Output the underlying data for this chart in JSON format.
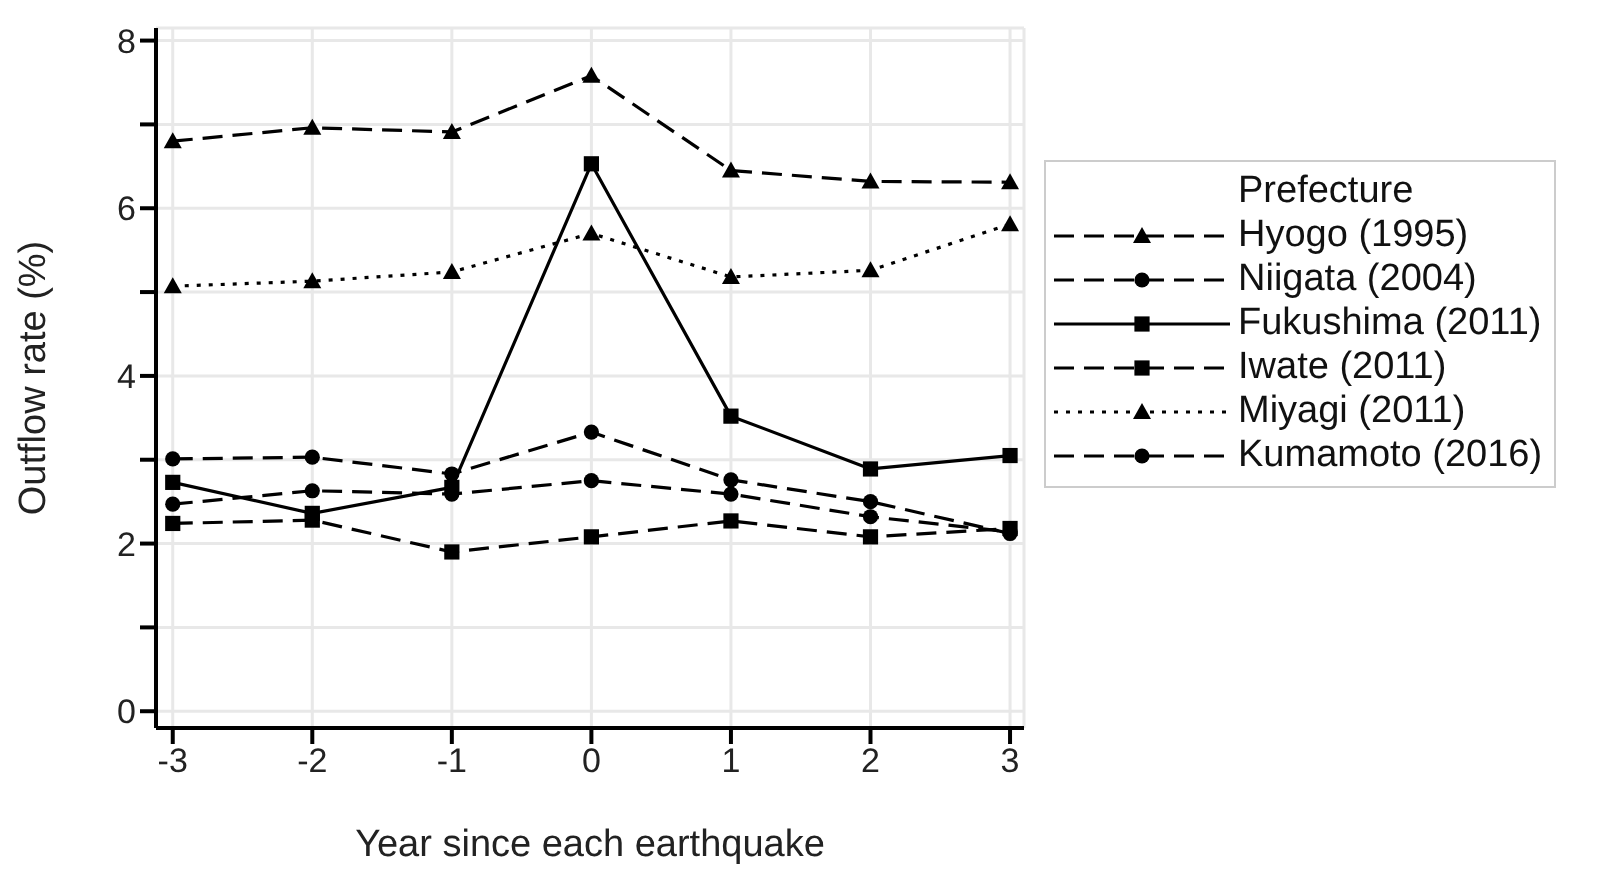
{
  "chart_data": {
    "type": "line",
    "xlabel": "Year since each earthquake",
    "ylabel": "Outflow rate (%)",
    "legend_title": "Prefecture",
    "x": [
      -3,
      -2,
      -1,
      0,
      1,
      2,
      3
    ],
    "xlim": [
      -3.12,
      3.1
    ],
    "xticks": [
      -3,
      -2,
      -1,
      0,
      1,
      2,
      3
    ],
    "ylim": [
      -0.2,
      8.15
    ],
    "yticks": [
      0,
      {
        "value": 1,
        "label": null
      },
      2,
      {
        "value": 3,
        "label": null
      },
      4,
      {
        "value": 5,
        "label": null
      },
      6,
      {
        "value": 7,
        "label": null
      },
      8
    ],
    "grid": true,
    "legend": "right",
    "series": [
      {
        "name": "Hyogo (1995)",
        "color": "#000000",
        "marker": "triangle",
        "line_style": "dashed",
        "values": [
          6.8,
          6.96,
          6.91,
          7.58,
          6.45,
          6.32,
          6.31
        ]
      },
      {
        "name": "Niigata (2004)",
        "color": "#000000",
        "marker": "circle",
        "line_style": "dashed",
        "values": [
          2.47,
          2.63,
          2.59,
          2.75,
          2.59,
          2.32,
          2.14
        ]
      },
      {
        "name": "Fukushima (2011)",
        "color": "#000000",
        "marker": "square",
        "line_style": "solid",
        "values": [
          2.73,
          2.36,
          2.67,
          6.53,
          3.52,
          2.89,
          3.05
        ]
      },
      {
        "name": "Iwate (2011)",
        "color": "#000000",
        "marker": "square",
        "line_style": "dashed",
        "values": [
          2.24,
          2.28,
          1.9,
          2.08,
          2.27,
          2.08,
          2.18
        ]
      },
      {
        "name": "Miyagi (2011)",
        "color": "#000000",
        "marker": "triangle",
        "line_style": "dotted",
        "values": [
          5.07,
          5.13,
          5.24,
          5.7,
          5.18,
          5.26,
          5.81
        ]
      },
      {
        "name": "Kumamoto (2016)",
        "color": "#000000",
        "marker": "circle",
        "line_style": "dashed",
        "values": [
          3.01,
          3.03,
          2.83,
          3.33,
          2.76,
          2.5,
          2.12
        ]
      }
    ]
  }
}
